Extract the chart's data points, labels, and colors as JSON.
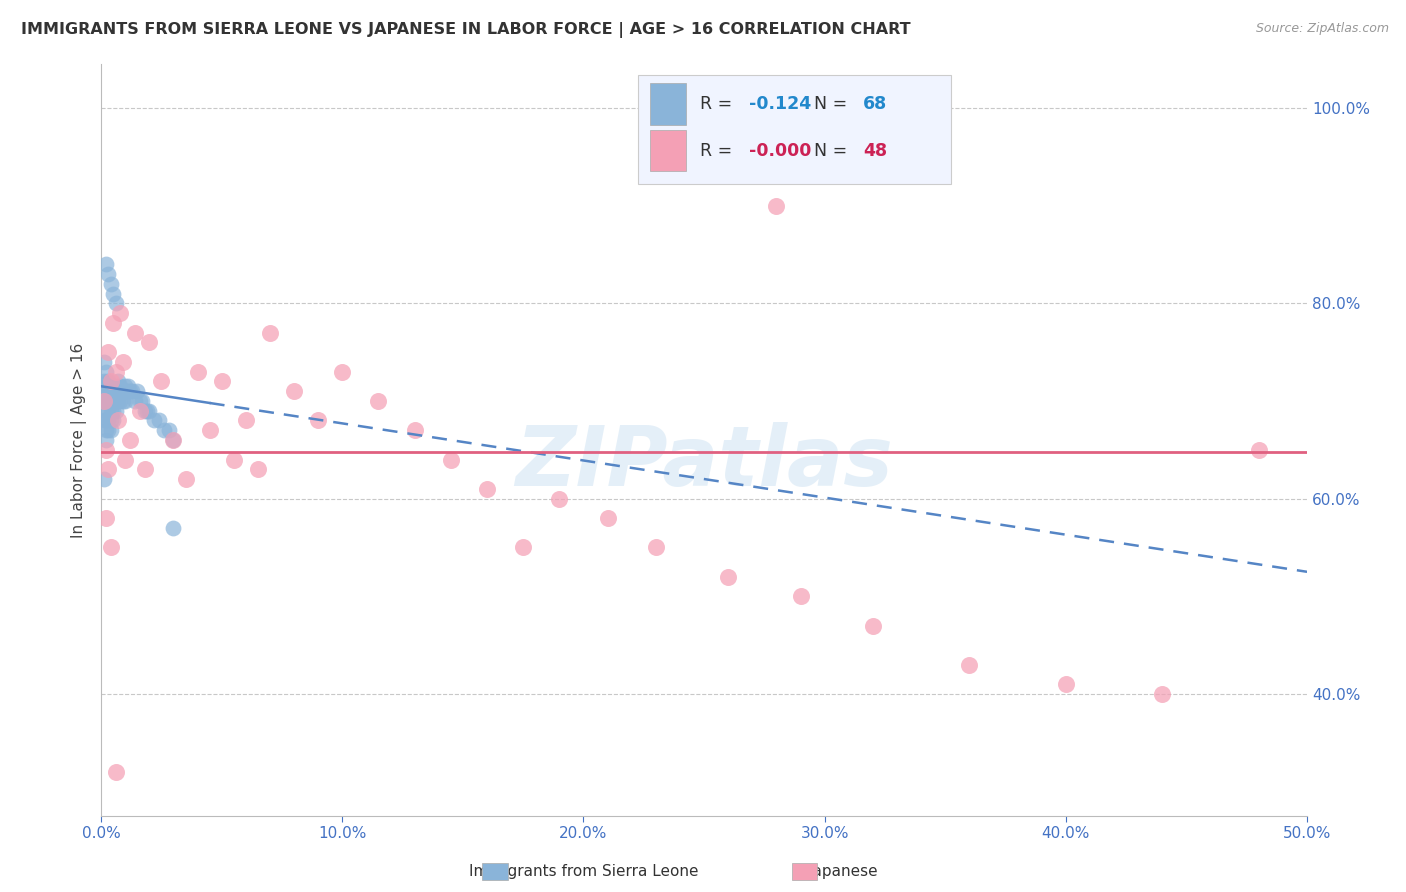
{
  "title": "IMMIGRANTS FROM SIERRA LEONE VS JAPANESE IN LABOR FORCE | AGE > 16 CORRELATION CHART",
  "source": "Source: ZipAtlas.com",
  "ylabel": "In Labor Force | Age > 16",
  "xlim": [
    0.0,
    0.5
  ],
  "ylim": [
    0.275,
    1.045
  ],
  "xticks": [
    0.0,
    0.1,
    0.2,
    0.3,
    0.4,
    0.5
  ],
  "yticks": [
    0.4,
    0.6,
    0.8,
    1.0
  ],
  "ytick_labels": [
    "40.0%",
    "60.0%",
    "80.0%",
    "100.0%"
  ],
  "xtick_labels": [
    "0.0%",
    "10.0%",
    "20.0%",
    "30.0%",
    "40.0%",
    "50.0%"
  ],
  "blue_R": "-0.124",
  "blue_N": "68",
  "pink_R": "-0.000",
  "pink_N": "48",
  "blue_color": "#8ab4d9",
  "pink_color": "#f4a0b5",
  "blue_trend_color": "#5585c5",
  "pink_trend_color": "#e06080",
  "watermark": "ZIPatlas",
  "blue_trend_x0": 0.0,
  "blue_trend_y0": 0.715,
  "blue_trend_x1": 0.5,
  "blue_trend_y1": 0.525,
  "blue_trend_solid_end": 0.045,
  "pink_trend_y": 0.648,
  "blue_scatter_x": [
    0.001,
    0.001,
    0.001,
    0.001,
    0.002,
    0.002,
    0.002,
    0.002,
    0.002,
    0.002,
    0.002,
    0.002,
    0.003,
    0.003,
    0.003,
    0.003,
    0.003,
    0.003,
    0.003,
    0.004,
    0.004,
    0.004,
    0.004,
    0.004,
    0.004,
    0.005,
    0.005,
    0.005,
    0.005,
    0.005,
    0.006,
    0.006,
    0.006,
    0.006,
    0.007,
    0.007,
    0.007,
    0.008,
    0.008,
    0.008,
    0.009,
    0.009,
    0.01,
    0.01,
    0.01,
    0.011,
    0.011,
    0.012,
    0.013,
    0.014,
    0.015,
    0.016,
    0.017,
    0.018,
    0.019,
    0.02,
    0.022,
    0.024,
    0.026,
    0.028,
    0.03,
    0.002,
    0.003,
    0.004,
    0.005,
    0.006,
    0.001,
    0.03
  ],
  "blue_scatter_y": [
    0.72,
    0.74,
    0.7,
    0.68,
    0.73,
    0.715,
    0.71,
    0.7,
    0.69,
    0.68,
    0.67,
    0.66,
    0.72,
    0.715,
    0.71,
    0.7,
    0.69,
    0.68,
    0.67,
    0.715,
    0.71,
    0.7,
    0.69,
    0.68,
    0.67,
    0.715,
    0.71,
    0.7,
    0.69,
    0.68,
    0.715,
    0.71,
    0.7,
    0.69,
    0.72,
    0.71,
    0.7,
    0.715,
    0.71,
    0.7,
    0.71,
    0.7,
    0.715,
    0.71,
    0.7,
    0.715,
    0.71,
    0.71,
    0.71,
    0.7,
    0.71,
    0.7,
    0.7,
    0.69,
    0.69,
    0.69,
    0.68,
    0.68,
    0.67,
    0.67,
    0.66,
    0.84,
    0.83,
    0.82,
    0.81,
    0.8,
    0.62,
    0.57
  ],
  "pink_scatter_x": [
    0.001,
    0.002,
    0.003,
    0.003,
    0.004,
    0.005,
    0.006,
    0.007,
    0.008,
    0.009,
    0.01,
    0.012,
    0.014,
    0.016,
    0.018,
    0.02,
    0.025,
    0.03,
    0.035,
    0.04,
    0.045,
    0.05,
    0.055,
    0.06,
    0.065,
    0.07,
    0.08,
    0.09,
    0.1,
    0.115,
    0.13,
    0.145,
    0.16,
    0.175,
    0.19,
    0.21,
    0.23,
    0.26,
    0.29,
    0.32,
    0.36,
    0.4,
    0.44,
    0.48,
    0.002,
    0.004,
    0.006,
    0.28
  ],
  "pink_scatter_y": [
    0.7,
    0.65,
    0.63,
    0.75,
    0.72,
    0.78,
    0.73,
    0.68,
    0.79,
    0.74,
    0.64,
    0.66,
    0.77,
    0.69,
    0.63,
    0.76,
    0.72,
    0.66,
    0.62,
    0.73,
    0.67,
    0.72,
    0.64,
    0.68,
    0.63,
    0.77,
    0.71,
    0.68,
    0.73,
    0.7,
    0.67,
    0.64,
    0.61,
    0.55,
    0.6,
    0.58,
    0.55,
    0.52,
    0.5,
    0.47,
    0.43,
    0.41,
    0.4,
    0.65,
    0.58,
    0.55,
    0.32,
    0.9
  ]
}
